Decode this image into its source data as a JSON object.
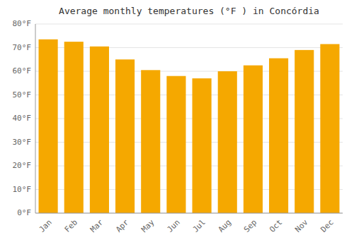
{
  "chart_data": {
    "type": "bar",
    "title": "Average monthly temperatures (°F ) in Concórdia",
    "categories": [
      "Jan",
      "Feb",
      "Mar",
      "Apr",
      "May",
      "Jun",
      "Jul",
      "Aug",
      "Sep",
      "Oct",
      "Nov",
      "Dec"
    ],
    "values": [
      73.5,
      72.5,
      70.5,
      65,
      60.5,
      58,
      57,
      60,
      62.5,
      65.5,
      69,
      71.5
    ],
    "color": "#F5A800",
    "ylim": [
      0,
      80
    ],
    "yticks": [
      {
        "value": 0,
        "label": "0°F"
      },
      {
        "value": 10,
        "label": "10°F"
      },
      {
        "value": 20,
        "label": "20°F"
      },
      {
        "value": 30,
        "label": "30°F"
      },
      {
        "value": 40,
        "label": "40°F"
      },
      {
        "value": 50,
        "label": "50°F"
      },
      {
        "value": 60,
        "label": "60°F"
      },
      {
        "value": 70,
        "label": "70°F"
      },
      {
        "value": 80,
        "label": "80°F"
      }
    ],
    "grid": true
  }
}
